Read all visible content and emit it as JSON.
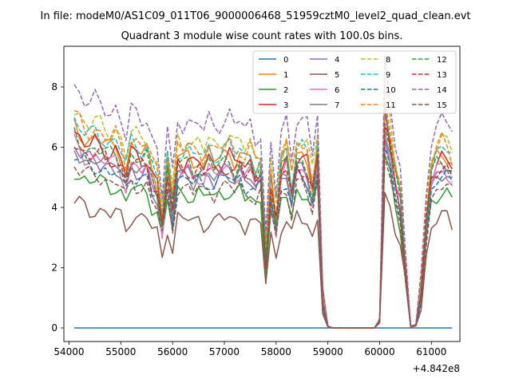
{
  "chart_data": {
    "type": "line",
    "suptitle": "In file: modeM0/AS1C09_011T06_9000006468_51959cztM0_level2_quad_clean.evt",
    "title": "Quadrant 3 module wise count rates with 100.0s bins.",
    "xlabel": "",
    "ylabel": "",
    "x_offset_label": "+4.842e8",
    "xlim": [
      53900,
      61550
    ],
    "ylim": [
      -0.45,
      9.35
    ],
    "x_ticks": [
      54000,
      55000,
      56000,
      57000,
      58000,
      59000,
      60000,
      61000
    ],
    "y_ticks": [
      0,
      2,
      4,
      6,
      8
    ],
    "legend_position": "top-right",
    "legend_columns": 4,
    "series": [
      {
        "name": "0",
        "color": "#1f77b4",
        "dashed": false,
        "scale": 0.0
      },
      {
        "name": "1",
        "color": "#ff7f0e",
        "dashed": false,
        "scale": 1.05
      },
      {
        "name": "2",
        "color": "#2ca02c",
        "dashed": false,
        "scale": 0.82
      },
      {
        "name": "3",
        "color": "#d62728",
        "dashed": false,
        "scale": 1.02
      },
      {
        "name": "4",
        "color": "#9467bd",
        "dashed": false,
        "scale": 0.94
      },
      {
        "name": "5",
        "color": "#8c564b",
        "dashed": false,
        "scale": 0.66
      },
      {
        "name": "6",
        "color": "#e377c2",
        "dashed": false,
        "scale": 0.95
      },
      {
        "name": "7",
        "color": "#7f7f7f",
        "dashed": false,
        "scale": 0.93
      },
      {
        "name": "8",
        "color": "#bcbd22",
        "dashed": true,
        "scale": 1.14
      },
      {
        "name": "9",
        "color": "#17becf",
        "dashed": true,
        "scale": 1.08
      },
      {
        "name": "10",
        "color": "#1f77b4",
        "dashed": true,
        "scale": 0.9
      },
      {
        "name": "11",
        "color": "#ff7f0e",
        "dashed": true,
        "scale": 1.1
      },
      {
        "name": "12",
        "color": "#2ca02c",
        "dashed": true,
        "scale": 1.0
      },
      {
        "name": "13",
        "color": "#d62728",
        "dashed": true,
        "scale": 0.97
      },
      {
        "name": "14",
        "color": "#9467bd",
        "dashed": true,
        "scale": 1.26
      },
      {
        "name": "15",
        "color": "#8c564b",
        "dashed": true,
        "scale": 0.85
      }
    ],
    "base_profile": {
      "x": [
        54100,
        54200,
        54300,
        54400,
        54500,
        54600,
        54700,
        54800,
        54900,
        55000,
        55100,
        55200,
        55300,
        55400,
        55500,
        55600,
        55700,
        55800,
        55900,
        56000,
        56100,
        56200,
        56300,
        56400,
        56500,
        56600,
        56700,
        56800,
        56900,
        57000,
        57100,
        57200,
        57300,
        57400,
        57500,
        57600,
        57700,
        57800,
        57900,
        58000,
        58100,
        58200,
        58300,
        58400,
        58500,
        58600,
        58700,
        58800,
        58900,
        59000,
        59100,
        59200,
        59300,
        59400,
        59500,
        59600,
        59700,
        59800,
        59900,
        60000,
        60100,
        60200,
        60300,
        60400,
        60500,
        60600,
        60700,
        60800,
        60900,
        61000,
        61100,
        61200,
        61300,
        61400
      ],
      "y": [
        6.4,
        6.2,
        6.0,
        5.9,
        6.0,
        5.9,
        5.8,
        5.7,
        5.8,
        5.5,
        5.0,
        5.7,
        5.6,
        5.5,
        5.6,
        5.0,
        4.7,
        3.5,
        5.2,
        4.0,
        5.5,
        5.4,
        5.5,
        5.3,
        5.4,
        5.2,
        5.5,
        5.3,
        5.4,
        5.5,
        5.6,
        5.3,
        5.5,
        5.2,
        5.4,
        5.0,
        5.2,
        2.4,
        4.7,
        3.5,
        5.2,
        5.5,
        4.5,
        5.6,
        5.5,
        5.3,
        4.5,
        5.7,
        1.0,
        0.05,
        0.0,
        0.0,
        0.0,
        0.0,
        0.0,
        0.0,
        0.0,
        0.0,
        0.0,
        0.25,
        6.9,
        6.0,
        4.9,
        4.2,
        2.0,
        0.05,
        0.1,
        1.2,
        3.5,
        5.0,
        5.4,
        5.6,
        5.5,
        5.2
      ]
    }
  }
}
